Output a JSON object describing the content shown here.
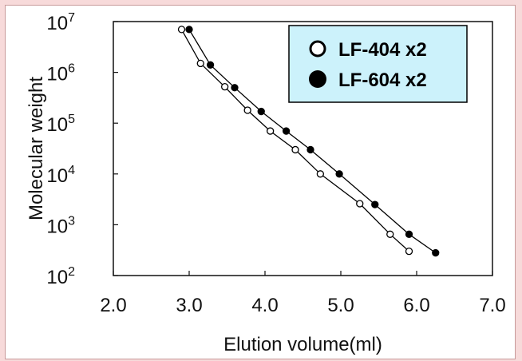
{
  "chart_data": {
    "type": "scatter",
    "xlabel": "Elution volume(ml)",
    "ylabel": "Molecular weight",
    "xlim": [
      2.0,
      7.0
    ],
    "ylim": [
      100,
      10000000
    ],
    "y_scale": "log",
    "x_ticks": [
      "2.0",
      "3.0",
      "4.0",
      "5.0",
      "6.0",
      "7.0"
    ],
    "y_ticks": [
      {
        "value": 100,
        "base": "10",
        "exp": "2"
      },
      {
        "value": 1000,
        "base": "10",
        "exp": "3"
      },
      {
        "value": 10000,
        "base": "10",
        "exp": "4"
      },
      {
        "value": 100000,
        "base": "10",
        "exp": "5"
      },
      {
        "value": 1000000,
        "base": "10",
        "exp": "6"
      },
      {
        "value": 10000000,
        "base": "10",
        "exp": "7"
      }
    ],
    "grid": false,
    "legend_position": "top-right",
    "legend_bg": "#ccf2fb",
    "series": [
      {
        "name": "LF-404 x2",
        "marker": "open-circle",
        "color": "#000000",
        "points": [
          [
            2.9,
            7000000
          ],
          [
            3.15,
            1500000
          ],
          [
            3.47,
            520000
          ],
          [
            3.77,
            180000
          ],
          [
            4.07,
            70000
          ],
          [
            4.4,
            30000
          ],
          [
            4.73,
            10000
          ],
          [
            5.25,
            2600
          ],
          [
            5.65,
            650
          ],
          [
            5.9,
            300
          ]
        ]
      },
      {
        "name": "LF-604 x2",
        "marker": "filled-circle",
        "color": "#000000",
        "points": [
          [
            3.0,
            7000000
          ],
          [
            3.28,
            1400000
          ],
          [
            3.6,
            500000
          ],
          [
            3.95,
            170000
          ],
          [
            4.28,
            70000
          ],
          [
            4.6,
            30000
          ],
          [
            4.98,
            10000
          ],
          [
            5.45,
            2500
          ],
          [
            5.9,
            650
          ],
          [
            6.25,
            280
          ]
        ]
      }
    ]
  }
}
